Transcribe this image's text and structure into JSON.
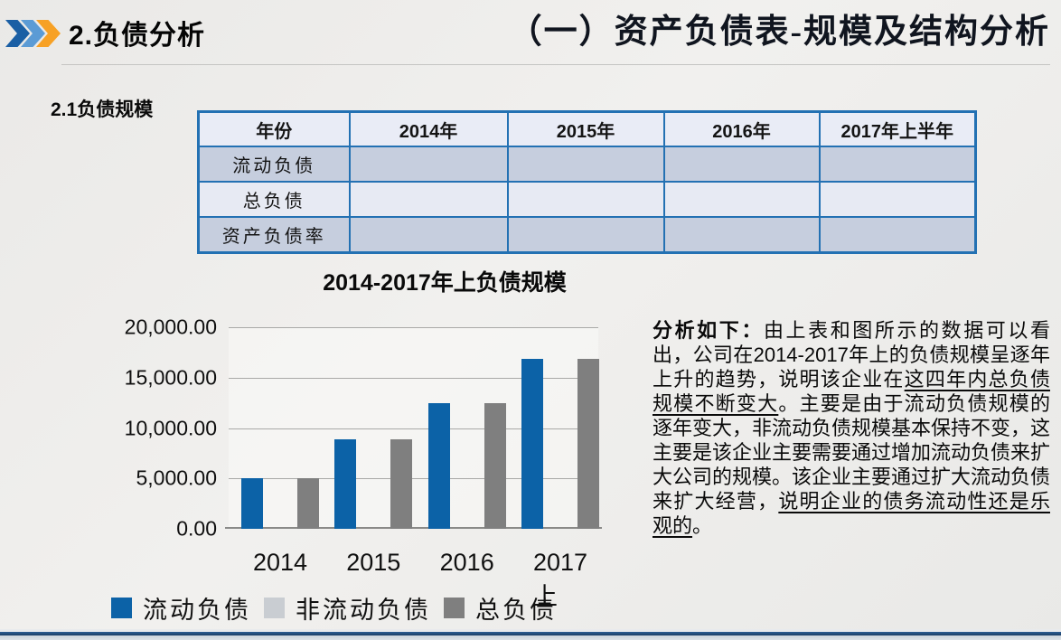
{
  "header": {
    "section_title": "2.负债分析",
    "page_title": "（一）资产负债表-规模及结构分析",
    "bullet_icon": "triple-chevron-right-icon",
    "bullet_colors": [
      "#1a5fa4",
      "#5b9bd5",
      "#f7a125"
    ]
  },
  "subtitle": "2.1负债规模",
  "table": {
    "columns": [
      "年份",
      "2014年",
      "2015年",
      "2016年",
      "2017年上半年"
    ],
    "rows": [
      {
        "label": "流动负债",
        "values": [
          "",
          "",
          "",
          ""
        ]
      },
      {
        "label": "总负债",
        "values": [
          "",
          "",
          "",
          ""
        ]
      },
      {
        "label": "资产负债率",
        "values": [
          "",
          "",
          "",
          ""
        ]
      }
    ],
    "border_color": "#2371b3",
    "header_bg": "#e9ecf6",
    "band_dark": "#c6cede",
    "band_light": "#e7eaf3"
  },
  "chart_data": {
    "type": "bar",
    "title": "2014-2017年上负债规模",
    "categories": [
      "2014",
      "2015",
      "2016",
      "2017上"
    ],
    "series": [
      {
        "name": "流动负债",
        "color": "#0c62a7",
        "values": [
          5000,
          8900,
          12500,
          16900
        ]
      },
      {
        "name": "非流动负债",
        "color": "#c9cdd2",
        "values": [
          0,
          0,
          0,
          0
        ]
      },
      {
        "name": "总负债",
        "color": "#7f7f7f",
        "values": [
          5000,
          8900,
          12500,
          16900
        ]
      }
    ],
    "ylim": [
      0,
      20000
    ],
    "y_ticks": [
      20000,
      15000,
      10000,
      5000,
      0
    ],
    "y_tick_labels": [
      "20,000.00",
      "15,000.00",
      "10,000.00",
      "5,000.00",
      "0.00"
    ],
    "grid": true,
    "legend_position": "bottom"
  },
  "analysis": {
    "segments": [
      {
        "text": "分析如下：",
        "bold": true,
        "underline": false
      },
      {
        "text": "由上表和图所示的数据可以看出，公司在2014-2017年上的负债规模呈逐年上升的趋势，说明该企业在",
        "bold": false,
        "underline": false
      },
      {
        "text": "这四年内总负债规模不断变大",
        "bold": false,
        "underline": true
      },
      {
        "text": "。主要是由于流动负债规模的逐年变大，非流动负债规模基本保持不变，这主要是该企业主要需要通过增加流动负债来扩大公司的规模。该企业主要通过扩大流动负债来扩大经营，",
        "bold": false,
        "underline": false
      },
      {
        "text": "说明企业的债务流动性还是乐观的",
        "bold": false,
        "underline": true
      },
      {
        "text": "。",
        "bold": false,
        "underline": false
      }
    ]
  }
}
